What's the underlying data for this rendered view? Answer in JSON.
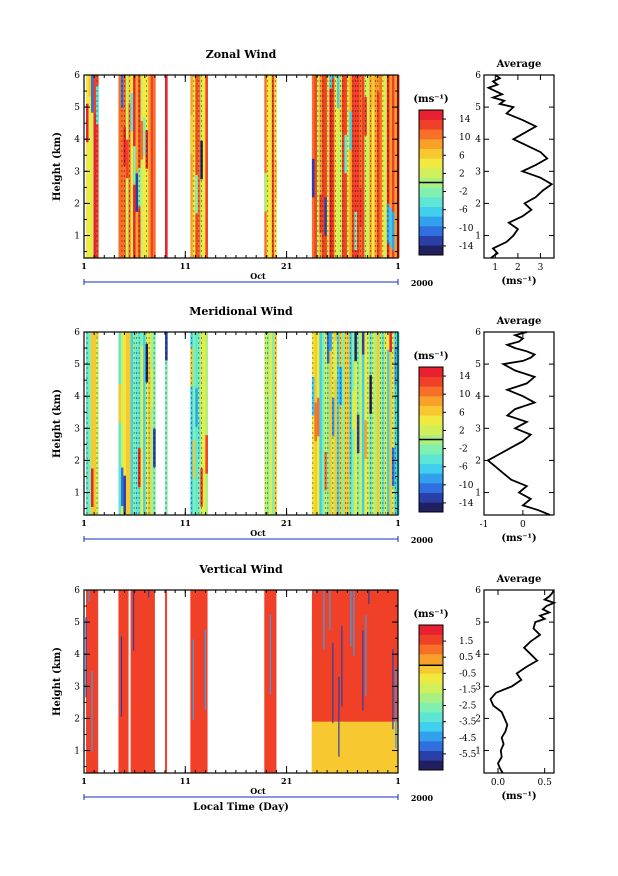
{
  "chart_data": [
    {
      "type": "heatmap",
      "title": "Zonal Wind",
      "ylabel": "Height (km)",
      "ylim": [
        0.3,
        6.0
      ],
      "yticks": [
        1,
        2,
        3,
        4,
        5,
        6
      ],
      "xlim": [
        1,
        32
      ],
      "xticks": [
        "1",
        "11",
        "21",
        "1"
      ],
      "xticks_values": [
        1,
        11,
        21,
        32
      ],
      "month_label": "Oct",
      "year_label": "2000",
      "data_blocks_day": [
        [
          1.2,
          2.4
        ],
        [
          4.4,
          5.4
        ],
        [
          5.6,
          8.0
        ],
        [
          9.0,
          9.2
        ],
        [
          11.5,
          13.2
        ],
        [
          18.8,
          20.0
        ],
        [
          23.5,
          32.0
        ]
      ],
      "colorbar": {
        "unit": "(ms⁻¹)",
        "ticks": [
          "14",
          "10",
          "6",
          "2",
          "-2",
          "-6",
          "-10",
          "-14"
        ],
        "range": [
          -16,
          16
        ],
        "colors": [
          "#202060",
          "#2a3fa8",
          "#2f6fe0",
          "#33a0ee",
          "#40d0ee",
          "#5ee6d4",
          "#80f0b0",
          "#a8f080",
          "#d0ef5a",
          "#f0ea40",
          "#f8c830",
          "#f8a028",
          "#f87028",
          "#f04028",
          "#e82030"
        ]
      },
      "average": {
        "title": "Average",
        "xlabel": "(ms⁻¹)",
        "xlim": [
          0.5,
          3.6
        ],
        "xticks": [
          "1",
          "2",
          "3"
        ],
        "profile_x": [
          0.8,
          1.1,
          0.9,
          1.5,
          1.8,
          2.0,
          1.6,
          2.2,
          2.6,
          2.3,
          2.8,
          3.1,
          3.5,
          3.0,
          2.2,
          2.8,
          3.3,
          3.0,
          2.4,
          1.8,
          2.3,
          2.8,
          2.2,
          1.5,
          1.8,
          1.2,
          1.4,
          0.9,
          1.3,
          1.0,
          0.7,
          1.1,
          0.9,
          1.2,
          1.0
        ],
        "profile_y": [
          0.3,
          0.45,
          0.6,
          0.8,
          1.0,
          1.2,
          1.4,
          1.6,
          1.8,
          2.0,
          2.2,
          2.4,
          2.6,
          2.8,
          3.0,
          3.2,
          3.4,
          3.6,
          3.8,
          4.0,
          4.2,
          4.4,
          4.6,
          4.8,
          5.0,
          5.1,
          5.2,
          5.3,
          5.4,
          5.5,
          5.6,
          5.7,
          5.8,
          5.9,
          6.0
        ]
      }
    },
    {
      "type": "heatmap",
      "title": "Meridional Wind",
      "ylabel": "Height (km)",
      "ylim": [
        0.3,
        6.0
      ],
      "yticks": [
        1,
        2,
        3,
        4,
        5,
        6
      ],
      "xlim": [
        1,
        32
      ],
      "xticks": [
        "1",
        "11",
        "21",
        "1"
      ],
      "xticks_values": [
        1,
        11,
        21,
        32
      ],
      "month_label": "Oct",
      "year_label": "2000",
      "data_blocks_day": [
        [
          1.2,
          2.4
        ],
        [
          4.4,
          5.4
        ],
        [
          5.6,
          8.0
        ],
        [
          9.0,
          9.2
        ],
        [
          11.5,
          13.2
        ],
        [
          18.8,
          20.0
        ],
        [
          23.5,
          32.0
        ]
      ],
      "colorbar": {
        "unit": "(ms⁻¹)",
        "ticks": [
          "14",
          "10",
          "6",
          "2",
          "-2",
          "-6",
          "-10",
          "-14"
        ],
        "range": [
          -16,
          16
        ],
        "colors": [
          "#202060",
          "#2a3fa8",
          "#2f6fe0",
          "#33a0ee",
          "#40d0ee",
          "#5ee6d4",
          "#80f0b0",
          "#a8f080",
          "#d0ef5a",
          "#f0ea40",
          "#f8c830",
          "#f8a028",
          "#f87028",
          "#f04028",
          "#e82030"
        ]
      },
      "average": {
        "title": "Average",
        "xlabel": "(ms⁻¹)",
        "xlim": [
          -1.0,
          0.8
        ],
        "xticks": [
          "-1",
          "0"
        ],
        "profile_x": [
          0.7,
          0.4,
          0.0,
          0.2,
          -0.1,
          0.1,
          -0.3,
          -0.5,
          -0.7,
          -0.9,
          -0.6,
          -0.3,
          0.0,
          0.2,
          -0.2,
          0.1,
          -0.4,
          -0.2,
          0.3,
          0.0,
          -0.4,
          0.1,
          0.3,
          -0.2,
          -0.5,
          0.0,
          0.2,
          0.3,
          0.1,
          -0.2,
          -0.4,
          -0.1,
          0.0,
          -0.2,
          0.1
        ],
        "profile_y": [
          0.3,
          0.45,
          0.6,
          0.8,
          1.0,
          1.2,
          1.4,
          1.6,
          1.8,
          2.0,
          2.2,
          2.4,
          2.6,
          2.8,
          3.0,
          3.2,
          3.4,
          3.6,
          3.8,
          4.0,
          4.2,
          4.4,
          4.6,
          4.8,
          5.0,
          5.1,
          5.2,
          5.3,
          5.4,
          5.5,
          5.6,
          5.7,
          5.8,
          5.9,
          6.0
        ]
      }
    },
    {
      "type": "heatmap",
      "title": "Vertical Wind",
      "xlabel": "Local Time (Day)",
      "ylabel": "Height (km)",
      "ylim": [
        0.3,
        6.0
      ],
      "yticks": [
        1,
        2,
        3,
        4,
        5,
        6
      ],
      "xlim": [
        1,
        32
      ],
      "xticks": [
        "1",
        "11",
        "21",
        "1"
      ],
      "xticks_values": [
        1,
        11,
        21,
        32
      ],
      "month_label": "Oct",
      "year_label": "2000",
      "data_blocks_day": [
        [
          1.2,
          2.4
        ],
        [
          4.4,
          5.4
        ],
        [
          5.6,
          8.0
        ],
        [
          9.0,
          9.2
        ],
        [
          11.5,
          13.2
        ],
        [
          18.8,
          20.0
        ],
        [
          23.5,
          32.0
        ]
      ],
      "colorbar": {
        "unit": "(ms⁻¹)",
        "ticks": [
          "1.5",
          "0.5",
          "-0.5",
          "-1.5",
          "-2.5",
          "-3.5",
          "-4.5",
          "-5.5"
        ],
        "range": [
          -6.5,
          2.5
        ],
        "colors": [
          "#202060",
          "#2a3fa8",
          "#2f6fe0",
          "#33a0ee",
          "#40d0ee",
          "#5ee6d4",
          "#80f0b0",
          "#a8f080",
          "#d0ef5a",
          "#f0ea40",
          "#f8c830",
          "#f8a028",
          "#f87028",
          "#f04028",
          "#e82030"
        ]
      },
      "average": {
        "title": "Average",
        "xlabel": "(ms⁻¹)",
        "xlim": [
          -0.15,
          0.6
        ],
        "xticks": [
          "0.0",
          "0.5"
        ],
        "profile_x": [
          0.05,
          0.02,
          0.0,
          0.04,
          0.03,
          0.06,
          0.04,
          0.08,
          0.1,
          0.07,
          0.04,
          -0.05,
          -0.08,
          -0.02,
          0.15,
          0.25,
          0.2,
          0.3,
          0.42,
          0.35,
          0.28,
          0.35,
          0.45,
          0.38,
          0.4,
          0.5,
          0.45,
          0.55,
          0.48,
          0.52,
          0.6,
          0.5,
          0.55,
          0.58,
          0.6
        ],
        "profile_y": [
          0.3,
          0.45,
          0.6,
          0.8,
          1.0,
          1.2,
          1.4,
          1.6,
          1.8,
          2.0,
          2.2,
          2.4,
          2.6,
          2.8,
          3.0,
          3.2,
          3.4,
          3.6,
          3.8,
          4.0,
          4.2,
          4.4,
          4.6,
          4.8,
          5.0,
          5.1,
          5.2,
          5.3,
          5.4,
          5.5,
          5.6,
          5.7,
          5.8,
          5.9,
          6.0
        ]
      }
    }
  ]
}
